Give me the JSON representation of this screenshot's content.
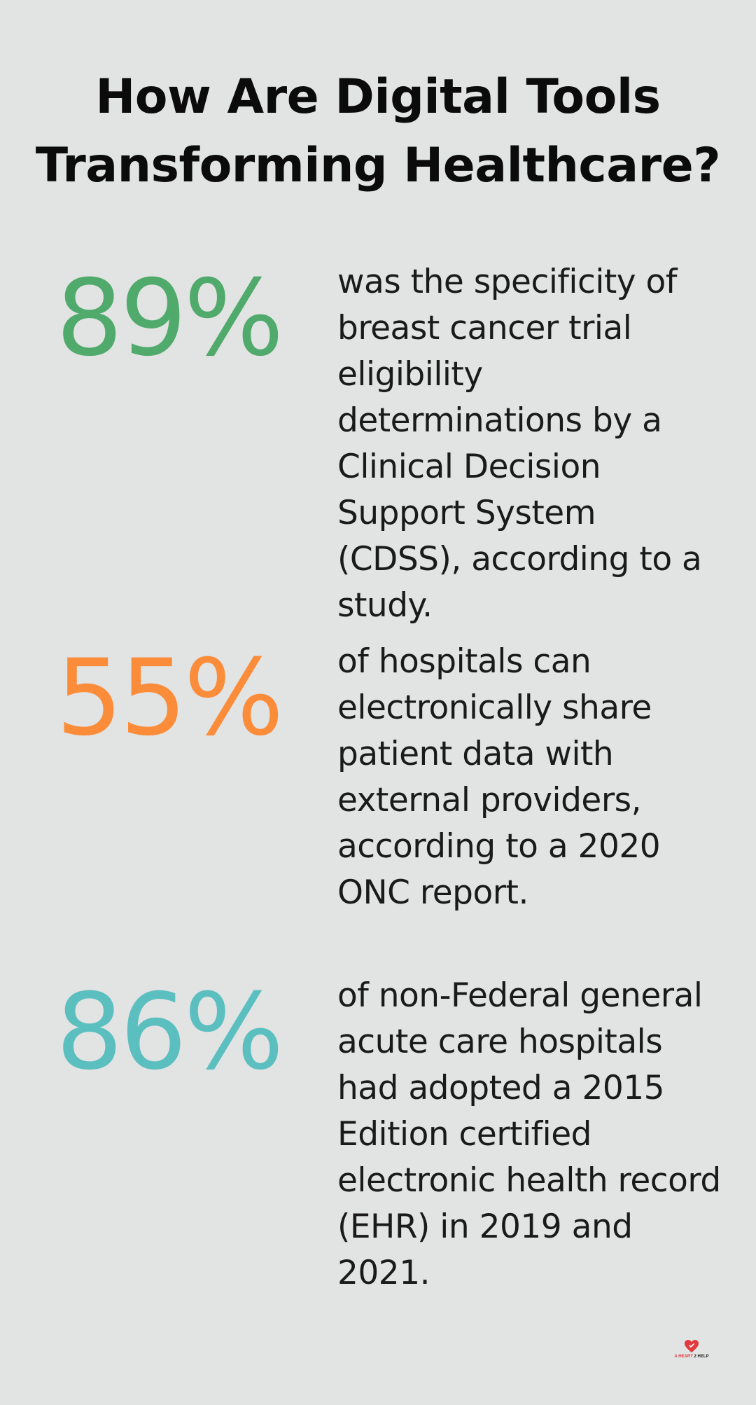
{
  "title": {
    "line1": "How Are Digital Tools",
    "line2": "Transforming Healthcare?"
  },
  "stats": [
    {
      "value": "89%",
      "color": "#4faa6b",
      "description": "was the specificity of breast cancer trial eligibility determinations by a Clinical Decision Support System (CDSS), according to a study."
    },
    {
      "value": "55%",
      "color": "#fb8c3a",
      "description": "of hospitals can electronically share patient data with external providers, according to a 2020 ONC report."
    },
    {
      "value": "86%",
      "color": "#5bbfc0",
      "description": "of non-Federal general acute care hospitals had adopted a 2015 Edition certified electronic health record (EHR) in 2019 and 2021."
    }
  ],
  "logo": {
    "icon": "heart-icon",
    "text_part1": "A HEART",
    "text_part2": "2 HELP"
  }
}
